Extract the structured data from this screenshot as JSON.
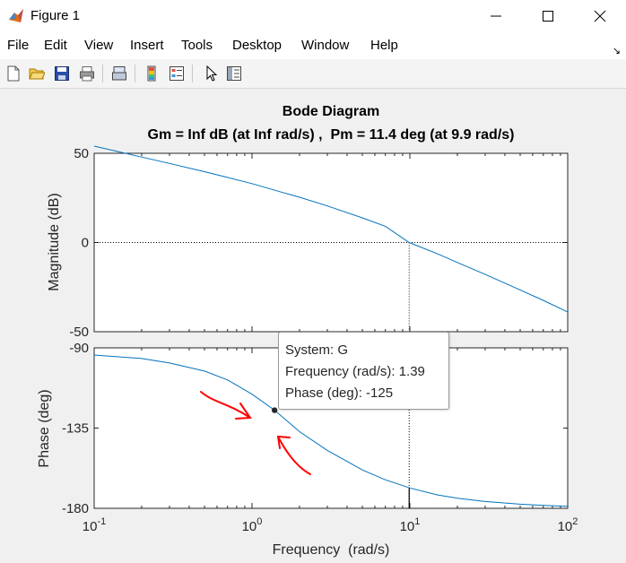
{
  "window": {
    "title": "Figure 1"
  },
  "menu": [
    "File",
    "Edit",
    "View",
    "Insert",
    "Tools",
    "Desktop",
    "Window",
    "Help"
  ],
  "toolbar": {
    "buttons": [
      "new-figure-icon",
      "open-file-icon",
      "save-icon",
      "print-icon",
      "link-plot-icon",
      "colorbar-icon",
      "legend-icon",
      "pointer-icon",
      "property-editor-icon"
    ]
  },
  "chart_data": {
    "type": "line",
    "title": "Bode Diagram",
    "subtitle": "Gm = Inf dB (at Inf rad/s) ,  Pm = 11.4 deg (at 9.9 rad/s)",
    "xlabel": "Frequency  (rad/s)",
    "x_scale": "log",
    "x_range": [
      0.1,
      100
    ],
    "x_ticks": [
      0.1,
      1,
      10,
      100
    ],
    "x_tick_labels": [
      {
        "base": "10",
        "exp": "-1"
      },
      {
        "base": "10",
        "exp": "0"
      },
      {
        "base": "10",
        "exp": "1"
      },
      {
        "base": "10",
        "exp": "2"
      }
    ],
    "grid": false,
    "line_color": "#0072bd",
    "magnitude": {
      "ylabel": "Magnitude (dB)",
      "ylim": [
        -50,
        50
      ],
      "yticks": [
        50,
        0,
        -50
      ],
      "x": [
        0.1,
        0.2,
        0.3,
        0.5,
        0.7,
        1,
        1.5,
        2,
        3,
        5,
        7,
        9.9,
        15,
        20,
        30,
        50,
        70,
        100
      ],
      "values": [
        54,
        47.9,
        44.3,
        39.7,
        36.5,
        33,
        28.5,
        25.4,
        20.5,
        13.8,
        9.1,
        0,
        -6.4,
        -11.2,
        -17.9,
        -26.6,
        -32.4,
        -39
      ]
    },
    "phase": {
      "ylabel": "Phase (deg)",
      "ylim": [
        -180,
        -90
      ],
      "yticks": [
        -90,
        -135,
        -180
      ],
      "x": [
        0.1,
        0.2,
        0.3,
        0.5,
        0.7,
        1,
        1.39,
        2,
        3,
        5,
        7,
        10,
        15,
        20,
        30,
        50,
        70,
        100
      ],
      "values": [
        -94,
        -96,
        -98.5,
        -103,
        -108,
        -116,
        -125,
        -137,
        -147.5,
        -158.5,
        -164,
        -168.6,
        -172.5,
        -174.3,
        -176.2,
        -177.7,
        -178.4,
        -178.9
      ]
    },
    "margin_marker": {
      "frequency": 9.9,
      "label": "Pm = 11.4 deg"
    },
    "datatip": {
      "frequency": 1.39,
      "phase": -125,
      "lines": [
        "System: G",
        "Frequency (rad/s): 1.39",
        "Phase (deg): -125"
      ]
    },
    "annotations": [
      {
        "type": "hand-drawn-arrow",
        "color": "#ff0000",
        "points_to": "datatip"
      },
      {
        "type": "hand-drawn-arrow",
        "color": "#ff0000",
        "points_to": "datatip"
      }
    ]
  }
}
